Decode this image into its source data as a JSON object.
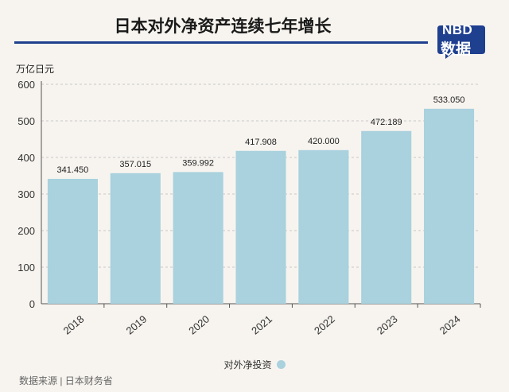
{
  "header": {
    "title": "日本对外净资产连续七年增长",
    "brand_top": "NBD",
    "brand_bottom": "数据",
    "brand_color": "#1f3f8f"
  },
  "footer": {
    "source": "数据来源 | 日本财务省"
  },
  "chart_data": {
    "type": "bar",
    "categories": [
      "2018",
      "2019",
      "2020",
      "2021",
      "2022",
      "2023",
      "2024"
    ],
    "series": [
      {
        "name": "对外净投资",
        "values": [
          341.45,
          357.015,
          359.992,
          417.908,
          420.0,
          472.189,
          533.05
        ],
        "labels": [
          "341.450",
          "357.015",
          "359.992",
          "417.908",
          "420.000",
          "472.189",
          "533.050"
        ],
        "color": "#a9d1de"
      }
    ],
    "ylabel": "万亿日元",
    "ylim": [
      0,
      600
    ],
    "yticks": [
      0,
      100,
      200,
      300,
      400,
      500,
      600
    ],
    "grid": "horizontal dashed",
    "legend_position": "bottom-center"
  }
}
